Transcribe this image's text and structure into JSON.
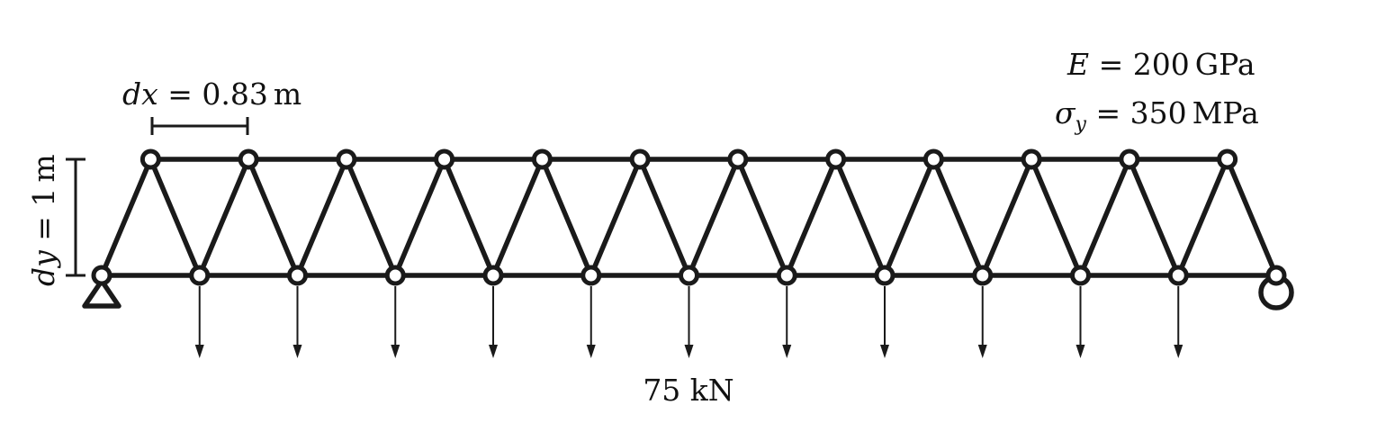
{
  "diagram": {
    "dx_label": {
      "symbol": "dx",
      "equals": " = ",
      "value": "0.83",
      "unit": "m"
    },
    "dy_label": {
      "symbol": "dy",
      "equals": " = ",
      "value": "1",
      "unit": "m"
    },
    "properties": [
      {
        "symbol": "E",
        "sub": "",
        "equals": " = ",
        "value": "200",
        "unit": "GPa"
      },
      {
        "symbol": "σ",
        "sub": "y",
        "equals": " = ",
        "value": "350",
        "unit": "MPa"
      }
    ],
    "load_label": "75 kN",
    "truss": {
      "bottom_chord_joints": 13,
      "top_chord_joints": 12,
      "loaded_bottom_joints": 11,
      "left_support": "pin",
      "right_support": "roller"
    },
    "colors": {
      "member": "#1a1a1a",
      "joint_fill": "#ffffff",
      "text": "#111111"
    }
  }
}
